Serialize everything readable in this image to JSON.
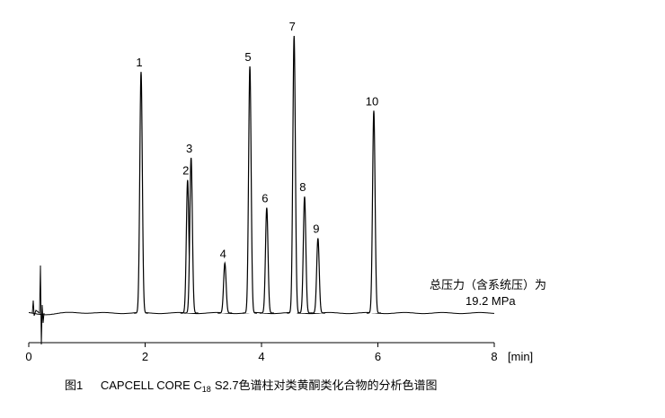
{
  "chart_data": {
    "type": "chromatogram",
    "x_label": "[min]",
    "xlim": [
      0,
      8
    ],
    "xticks": [
      0,
      2,
      4,
      6,
      8
    ],
    "peaks": {
      "labels": [
        "1",
        "2",
        "3",
        "4",
        "5",
        "6",
        "7",
        "8",
        "9",
        "10"
      ],
      "x": [
        1.93,
        2.73,
        2.79,
        3.37,
        3.8,
        4.09,
        4.56,
        4.74,
        4.97,
        5.93
      ],
      "values": [
        87,
        48,
        56,
        18,
        89,
        38,
        100,
        42,
        27,
        73
      ]
    },
    "color": "#000000",
    "annotation": {
      "line1": "总压力（含系统压）为",
      "line2": "19.2  MPa"
    },
    "caption": {
      "figure": "图1",
      "text_before": "CAPCELL CORE C",
      "subscript": "18",
      "text_after": "S2.7色谱柱对类黄酮类化合物的分析色谱图"
    }
  }
}
